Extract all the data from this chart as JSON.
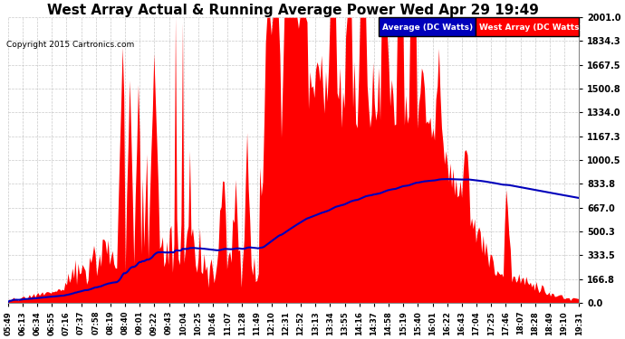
{
  "title": "West Array Actual & Running Average Power Wed Apr 29 19:49",
  "copyright": "Copyright 2015 Cartronics.com",
  "yticks": [
    0.0,
    166.8,
    333.5,
    500.3,
    667.0,
    833.8,
    1000.5,
    1167.3,
    1334.0,
    1500.8,
    1667.5,
    1834.3,
    2001.0
  ],
  "ylim": [
    0.0,
    2001.0
  ],
  "fill_color": "#ff0000",
  "avg_color": "#0000bb",
  "background_color": "#ffffff",
  "grid_color": "#bbbbbb",
  "title_fontsize": 11,
  "legend_avg_label": "Average (DC Watts)",
  "legend_west_label": "West Array (DC Watts)",
  "legend_avg_bg": "#0000bb",
  "legend_west_bg": "#ff0000",
  "xtick_labels": [
    "05:49",
    "06:13",
    "06:34",
    "06:55",
    "07:16",
    "07:37",
    "07:58",
    "08:19",
    "08:40",
    "09:01",
    "09:22",
    "09:43",
    "10:04",
    "10:25",
    "10:46",
    "11:07",
    "11:28",
    "11:49",
    "12:10",
    "12:31",
    "12:52",
    "13:13",
    "13:34",
    "13:55",
    "14:16",
    "14:37",
    "14:58",
    "15:19",
    "15:40",
    "16:01",
    "16:22",
    "16:43",
    "17:04",
    "17:25",
    "17:46",
    "18:07",
    "18:28",
    "18:49",
    "19:10",
    "19:31"
  ]
}
